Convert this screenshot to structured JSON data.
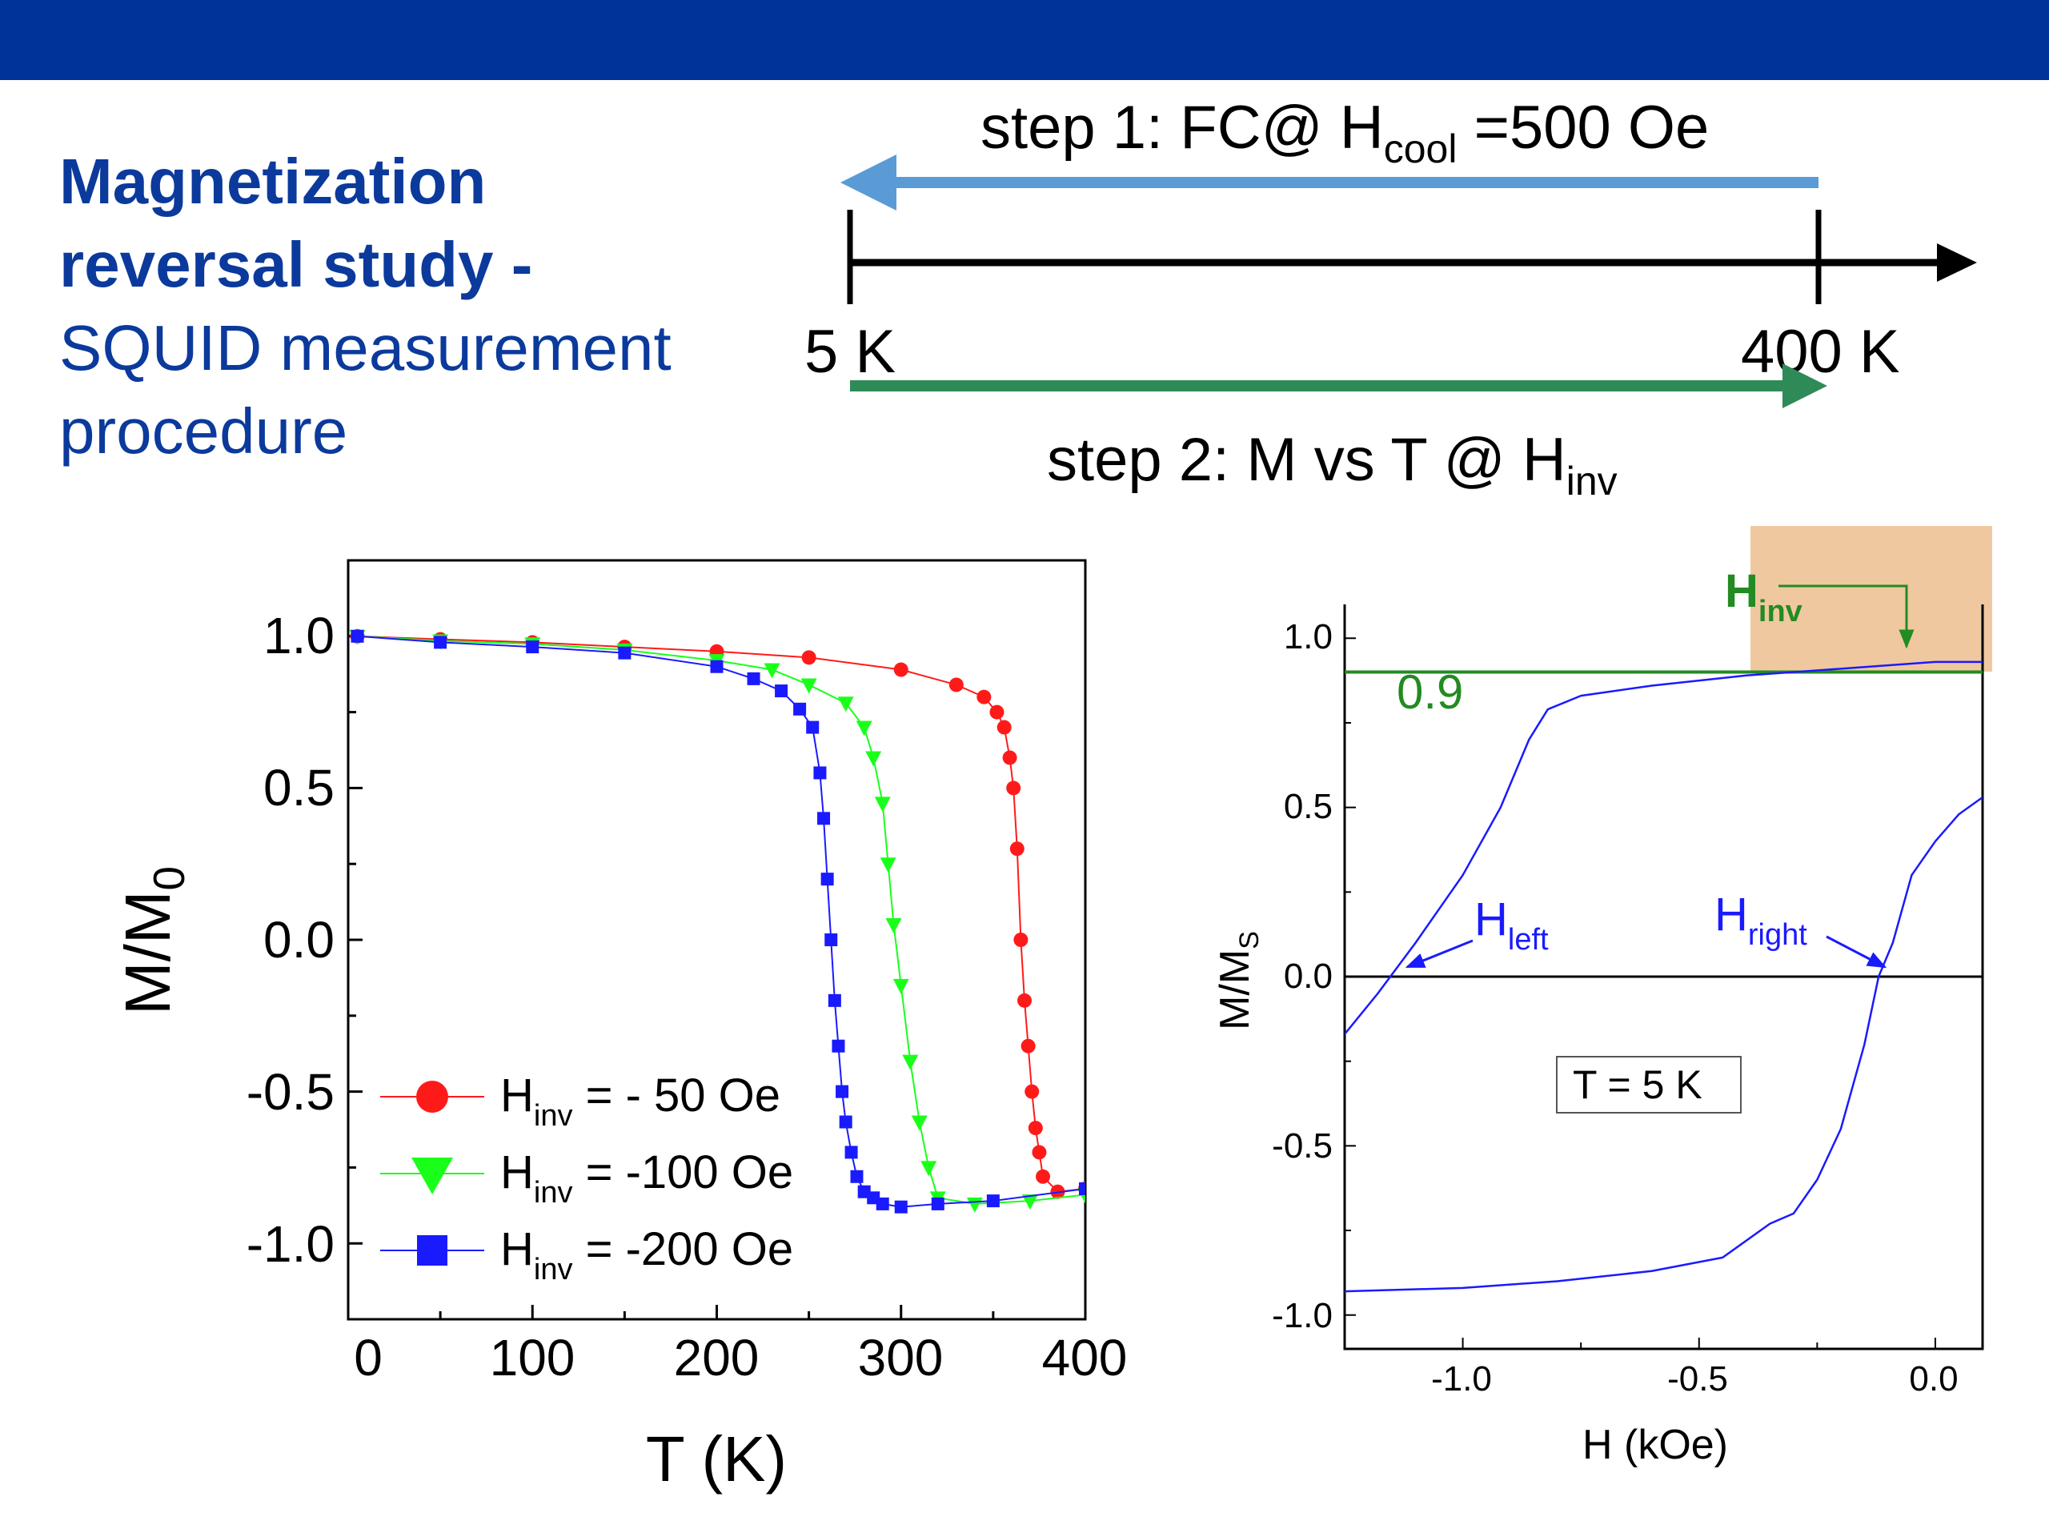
{
  "title": {
    "line1": "Magnetization",
    "line2": "reversal study -",
    "line3": "SQUID measurement",
    "line4": "procedure"
  },
  "procedure": {
    "step1_prefix": "step 1: FC@ H",
    "step1_sub": "cool",
    "step1_suffix": " =500 Oe",
    "label_start": "5 K",
    "label_end": "400 K",
    "step2_prefix": "step 2: M vs T @ H",
    "step2_sub": "inv",
    "colors": {
      "step1": "#5b9bd5",
      "step2": "#2e8b57",
      "axis": "#000000"
    }
  },
  "chart_data": [
    {
      "type": "scatter",
      "xlabel": "T (K)",
      "ylabel_main": "M/M",
      "ylabel_sub": "0",
      "xlim": [
        0,
        400
      ],
      "ylim": [
        -1.25,
        1.25
      ],
      "xticks": [
        "0",
        "100",
        "200",
        "300",
        "400"
      ],
      "yticks": [
        "1.0",
        "0.5",
        "0.0",
        "-0.5",
        "-1.0"
      ],
      "legend_position": "lower-left",
      "series": [
        {
          "name_main": "H",
          "name_sub": "inv",
          "name_value": " = - 50 Oe",
          "color": "#ff1a1a",
          "marker": "circle",
          "x": [
            5,
            50,
            100,
            150,
            200,
            250,
            300,
            330,
            345,
            352,
            356,
            359,
            361,
            363,
            365,
            367,
            369,
            371,
            373,
            375,
            377,
            385,
            400
          ],
          "y": [
            1.0,
            0.99,
            0.98,
            0.965,
            0.95,
            0.93,
            0.89,
            0.84,
            0.8,
            0.75,
            0.7,
            0.6,
            0.5,
            0.3,
            0.0,
            -0.2,
            -0.35,
            -0.5,
            -0.62,
            -0.7,
            -0.78,
            -0.83,
            -0.82
          ]
        },
        {
          "name_main": "H",
          "name_sub": "inv",
          "name_value": " = -100 Oe",
          "color": "#1aff1a",
          "marker": "triangle-down",
          "x": [
            5,
            50,
            100,
            150,
            200,
            230,
            250,
            270,
            280,
            285,
            290,
            293,
            296,
            300,
            305,
            310,
            315,
            320,
            340,
            370,
            400
          ],
          "y": [
            1.0,
            0.985,
            0.975,
            0.955,
            0.92,
            0.89,
            0.84,
            0.78,
            0.7,
            0.6,
            0.45,
            0.25,
            0.05,
            -0.15,
            -0.4,
            -0.6,
            -0.75,
            -0.85,
            -0.87,
            -0.86,
            -0.84
          ]
        },
        {
          "name_main": "H",
          "name_sub": "inv",
          "name_value": " = -200 Oe",
          "color": "#1a1aff",
          "marker": "square",
          "x": [
            5,
            50,
            100,
            150,
            200,
            220,
            235,
            245,
            252,
            256,
            258,
            260,
            262,
            264,
            266,
            268,
            270,
            273,
            276,
            280,
            285,
            290,
            300,
            320,
            350,
            400
          ],
          "y": [
            1.0,
            0.98,
            0.965,
            0.945,
            0.9,
            0.86,
            0.82,
            0.76,
            0.7,
            0.55,
            0.4,
            0.2,
            0.0,
            -0.2,
            -0.35,
            -0.5,
            -0.6,
            -0.7,
            -0.78,
            -0.83,
            -0.85,
            -0.87,
            -0.88,
            -0.87,
            -0.86,
            -0.82
          ]
        }
      ]
    },
    {
      "type": "line",
      "xlabel": "H (kOe)",
      "ylabel_main": "M/M",
      "ylabel_sub": "S",
      "xlim": [
        -1.25,
        0.1
      ],
      "ylim": [
        -1.1,
        1.1
      ],
      "xticks": [
        "-1.0",
        "-0.5",
        "0.0"
      ],
      "yticks": [
        "1.0",
        "0.5",
        "0.0",
        "-0.5",
        "-1.0"
      ],
      "series_color": "#1a1aff",
      "upper_branch": {
        "x": [
          -1.25,
          -1.18,
          -1.1,
          -1.0,
          -0.92,
          -0.86,
          -0.82,
          -0.75,
          -0.6,
          -0.4,
          -0.2,
          0.0,
          0.1
        ],
        "y": [
          -0.17,
          -0.05,
          0.1,
          0.3,
          0.5,
          0.7,
          0.79,
          0.83,
          0.86,
          0.89,
          0.91,
          0.93,
          0.93
        ]
      },
      "lower_branch": {
        "x": [
          -1.25,
          -1.0,
          -0.8,
          -0.6,
          -0.45,
          -0.35,
          -0.3,
          -0.25,
          -0.2,
          -0.15,
          -0.12,
          -0.09,
          -0.05,
          0.0,
          0.05,
          0.1
        ],
        "y": [
          -0.93,
          -0.92,
          -0.9,
          -0.87,
          -0.83,
          -0.73,
          -0.7,
          -0.6,
          -0.45,
          -0.2,
          0.0,
          0.1,
          0.3,
          0.4,
          0.48,
          0.53
        ]
      },
      "reference_line": {
        "value": 0.9,
        "label": "0.9",
        "color": "#228b22"
      },
      "zero_line": {
        "value": 0.0
      },
      "annotations": {
        "h_left_main": "H",
        "h_left_sub": "left",
        "h_right_main": "H",
        "h_right_sub": "right",
        "h_inv_main": "H",
        "h_inv_sub": "inv",
        "temperature": "T =  5 K"
      },
      "highlight_color": "#f0c8a0"
    }
  ]
}
